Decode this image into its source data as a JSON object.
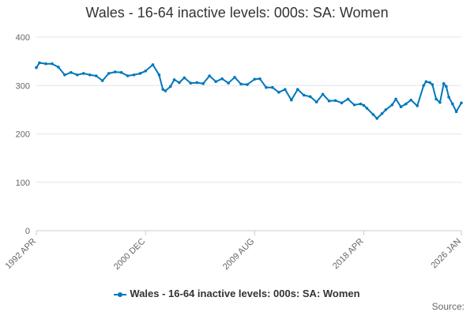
{
  "chart_data": {
    "type": "line",
    "title": "Wales - 16-64 inactive levels: 000s: SA: Women",
    "xlabel": "",
    "ylabel": "",
    "ylim": [
      0,
      400
    ],
    "yticks": [
      0,
      100,
      200,
      300,
      400
    ],
    "x_tick_labels": [
      "1992 APR",
      "2000 DEC",
      "2009 AUG",
      "2018 APR",
      "2026 JAN"
    ],
    "x_tick_years": [
      1992.25,
      2000.92,
      2009.58,
      2018.25,
      2026.0
    ],
    "xlim": [
      1992.25,
      2026.0
    ],
    "legend_position": "bottom",
    "series": [
      {
        "name": "Wales - 16-64 inactive levels: 000s: SA: Women",
        "color": "#0077bb",
        "x": [
          1992.25,
          1992.5,
          1993.0,
          1993.5,
          1994.0,
          1994.5,
          1995.0,
          1995.5,
          1996.0,
          1996.5,
          1997.0,
          1997.5,
          1998.0,
          1998.5,
          1999.0,
          1999.5,
          2000.0,
          2000.5,
          2000.92,
          2001.5,
          2002.0,
          2002.3,
          2002.5,
          2002.9,
          2003.2,
          2003.6,
          2004.0,
          2004.5,
          2005.0,
          2005.5,
          2006.0,
          2006.5,
          2007.0,
          2007.5,
          2008.0,
          2008.5,
          2009.0,
          2009.58,
          2010.0,
          2010.5,
          2011.0,
          2011.5,
          2012.0,
          2012.5,
          2013.0,
          2013.5,
          2014.0,
          2014.5,
          2015.0,
          2015.5,
          2016.0,
          2016.5,
          2017.0,
          2017.5,
          2018.0,
          2018.25,
          2018.5,
          2019.0,
          2019.3,
          2019.7,
          2020.0,
          2020.5,
          2020.8,
          2021.2,
          2021.6,
          2022.0,
          2022.5,
          2023.0,
          2023.2,
          2023.5,
          2023.7,
          2024.0,
          2024.3,
          2024.6,
          2024.8,
          2025.0,
          2025.3,
          2025.6,
          2026.0
        ],
        "values": [
          337,
          347,
          345,
          345,
          338,
          322,
          327,
          322,
          325,
          322,
          320,
          310,
          325,
          328,
          327,
          320,
          322,
          325,
          330,
          343,
          322,
          292,
          289,
          298,
          312,
          306,
          316,
          305,
          306,
          304,
          320,
          308,
          314,
          305,
          317,
          303,
          302,
          313,
          314,
          296,
          296,
          286,
          292,
          270,
          292,
          280,
          277,
          266,
          282,
          268,
          269,
          264,
          272,
          260,
          262,
          259,
          253,
          240,
          232,
          242,
          250,
          260,
          272,
          256,
          262,
          270,
          258,
          300,
          308,
          306,
          302,
          272,
          265,
          304,
          298,
          276,
          262,
          246,
          264
        ]
      }
    ]
  },
  "legend": {
    "label": "Wales - 16-64 inactive levels: 000s: SA: Women"
  },
  "source": {
    "label": "Source:"
  }
}
